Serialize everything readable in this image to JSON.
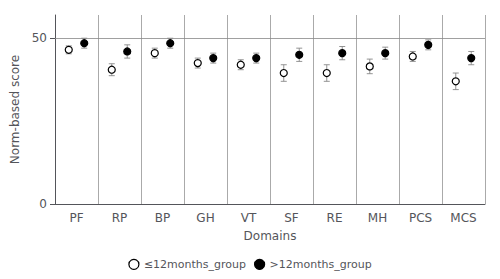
{
  "chart_data": {
    "type": "scatter",
    "categories": [
      "PF",
      "RP",
      "BP",
      "GH",
      "VT",
      "SF",
      "RE",
      "MH",
      "PCS",
      "MCS"
    ],
    "xlabel": "Domains",
    "ylabel": "Norm-based score",
    "ylim": [
      0,
      57
    ],
    "yticks": [
      0,
      50
    ],
    "reference_line": 50,
    "grid": "x",
    "legend": "bottom",
    "series": [
      {
        "name": "≤12months_group",
        "color": "#000000",
        "marker": "open_circle",
        "values": [
          46.5,
          40.5,
          45.5,
          42.5,
          42.0,
          39.5,
          39.5,
          41.5,
          44.5,
          37.0
        ],
        "error_low": [
          1.2,
          1.8,
          1.5,
          1.5,
          1.5,
          2.5,
          2.5,
          2.2,
          1.5,
          2.5
        ],
        "error_high": [
          1.2,
          1.8,
          1.5,
          1.5,
          1.5,
          2.5,
          2.5,
          2.2,
          1.5,
          2.5
        ]
      },
      {
        "name": ">12months_group",
        "color": "#000000",
        "marker": "circle",
        "values": [
          48.5,
          46.0,
          48.5,
          44.0,
          44.0,
          45.0,
          45.5,
          45.5,
          48.0,
          44.0
        ],
        "error_low": [
          1.5,
          2.0,
          1.5,
          1.5,
          1.5,
          2.0,
          2.0,
          1.8,
          1.5,
          2.0
        ],
        "error_high": [
          1.5,
          2.0,
          1.5,
          1.5,
          1.5,
          2.0,
          2.0,
          1.8,
          1.5,
          2.0
        ]
      }
    ]
  }
}
